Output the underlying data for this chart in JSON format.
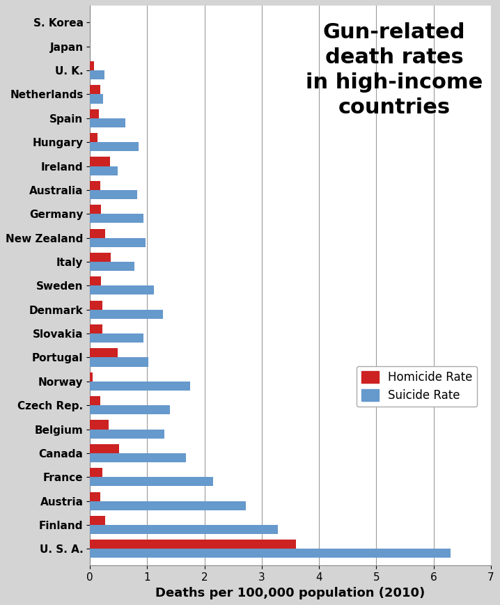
{
  "countries": [
    "U. S. A.",
    "Finland",
    "Austria",
    "France",
    "Canada",
    "Belgium",
    "Czech Rep.",
    "Norway",
    "Portugal",
    "Slovakia",
    "Denmark",
    "Sweden",
    "Italy",
    "New Zealand",
    "Germany",
    "Australia",
    "Ireland",
    "Hungary",
    "Spain",
    "Netherlands",
    "U. K.",
    "Japan",
    "S. Korea"
  ],
  "homicide_rates": [
    3.6,
    0.26,
    0.18,
    0.22,
    0.51,
    0.33,
    0.18,
    0.05,
    0.48,
    0.21,
    0.22,
    0.19,
    0.36,
    0.26,
    0.19,
    0.18,
    0.35,
    0.13,
    0.15,
    0.18,
    0.07,
    0.0,
    0.0
  ],
  "suicide_rates": [
    6.3,
    3.28,
    2.72,
    2.15,
    1.68,
    1.3,
    1.4,
    1.75,
    1.02,
    0.93,
    1.28,
    1.12,
    0.77,
    0.97,
    0.93,
    0.83,
    0.48,
    0.85,
    0.62,
    0.23,
    0.25,
    0.0,
    0.0
  ],
  "homicide_color": "#cc2222",
  "suicide_color": "#6699cc",
  "title": "Gun-related\ndeath rates\nin high-income\ncountries",
  "xlabel": "Deaths per 100,000 population (2010)",
  "xlim": [
    0,
    7
  ],
  "xticks": [
    0,
    1,
    2,
    3,
    4,
    5,
    6,
    7
  ],
  "background_color": "#d4d4d4",
  "plot_background": "#ffffff",
  "title_fontsize": 22,
  "label_fontsize": 13,
  "tick_fontsize": 11,
  "legend_fontsize": 12
}
